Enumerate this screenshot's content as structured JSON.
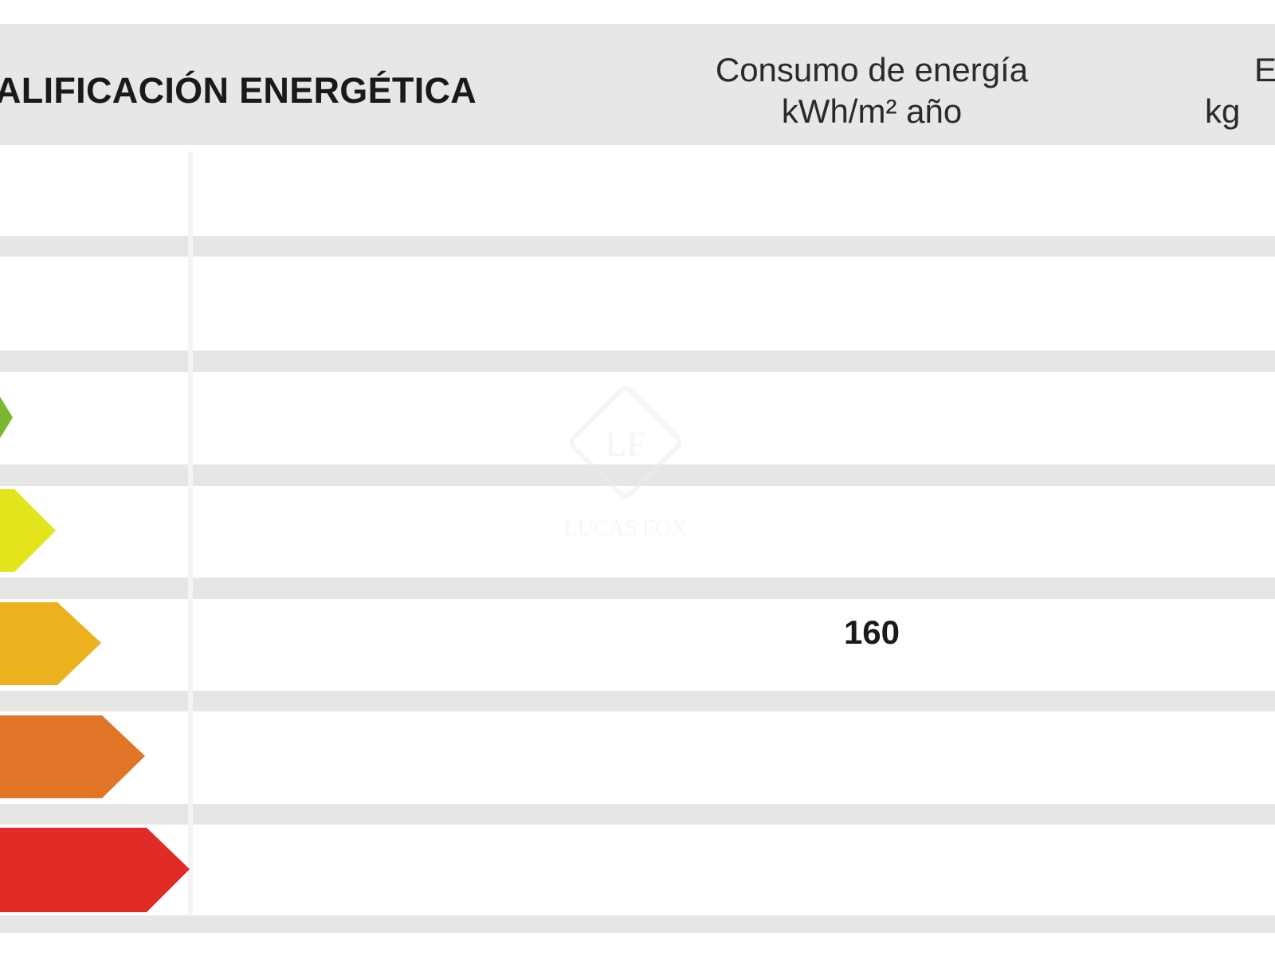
{
  "header": {
    "title": "ALIFICACIÓN ENERGÉTICA",
    "consumo_line1": "Consumo de energía",
    "consumo_line2": "kWh/m² año",
    "emisiones_line1": "E",
    "emisiones_line2": "kg"
  },
  "rows": [
    {
      "color": null,
      "consumo_value": ""
    },
    {
      "color": null,
      "consumo_value": ""
    },
    {
      "color": "#7cb82f",
      "consumo_value": ""
    },
    {
      "color": "#e3e41c",
      "consumo_value": ""
    },
    {
      "color": "#ebb21d",
      "consumo_value": "160"
    },
    {
      "color": "#e07427",
      "consumo_value": ""
    },
    {
      "color": "#e12b26",
      "consumo_value": ""
    }
  ],
  "watermark": {
    "brand": "LUCAS FOX",
    "monogram": "LF"
  }
}
